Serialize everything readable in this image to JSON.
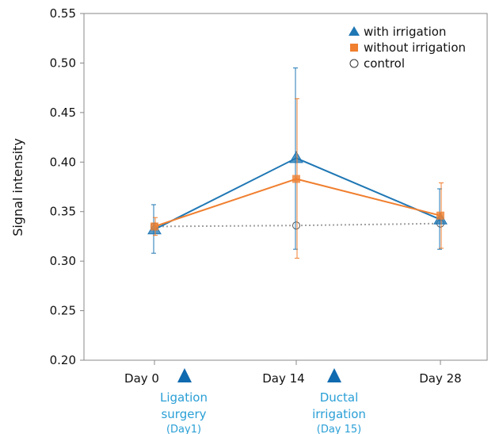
{
  "chart_data": {
    "type": "line",
    "ylabel": "Signal intensity",
    "xlabel": "",
    "categories": [
      "Day 0",
      "Day 14",
      "Day 28"
    ],
    "ylim": [
      0.2,
      0.55
    ],
    "yticks": [
      "0.20",
      "0.25",
      "0.30",
      "0.35",
      "0.40",
      "0.45",
      "0.50",
      "0.55"
    ],
    "grid": false,
    "legend_position": "top-right",
    "series": [
      {
        "name": "with irrigation",
        "marker": "triangle",
        "color": "#1f77b4",
        "values": [
          0.332,
          0.404,
          0.342
        ],
        "error_low": [
          0.308,
          0.312,
          0.312
        ],
        "error_high": [
          0.357,
          0.495,
          0.373
        ]
      },
      {
        "name": "without irrigation",
        "marker": "square",
        "color": "#f07f2f",
        "values": [
          0.335,
          0.383,
          0.346
        ],
        "error_low": [
          0.326,
          0.303,
          0.313
        ],
        "error_high": [
          0.344,
          0.464,
          0.379
        ]
      },
      {
        "name": "control",
        "marker": "circle",
        "color": "#a0a0a0",
        "line_style": "dotted",
        "values": [
          0.335,
          0.336,
          0.338
        ]
      }
    ],
    "annotations": [
      {
        "category_index": 0,
        "color": "#2a9fd6",
        "marker_color": "#0f6ab0",
        "line1": "Ligation",
        "line2": "surgery",
        "line3": "(Day1)"
      },
      {
        "category_index": 1,
        "color": "#2a9fd6",
        "marker_color": "#0f6ab0",
        "line1": "Ductal",
        "line2": "irrigation",
        "line3": "(Day 15)"
      }
    ]
  }
}
